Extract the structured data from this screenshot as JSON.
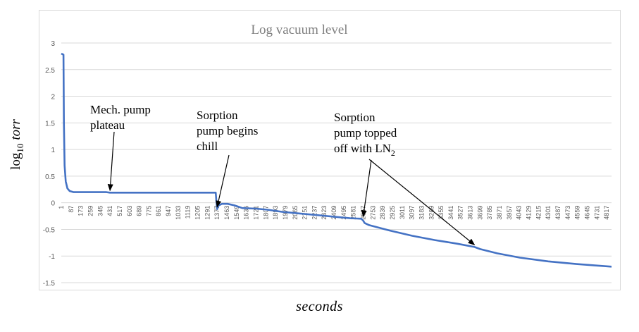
{
  "chart_data": {
    "type": "line",
    "title": "Log vacuum level",
    "xlabel": "seconds",
    "ylabel_base": "log",
    "ylabel_sub": "10",
    "ylabel_unit": "torr",
    "ylim": [
      -1.5,
      3
    ],
    "y_ticks": [
      3,
      2.5,
      2,
      1.5,
      1,
      0.5,
      0,
      -0.5,
      -1,
      -1.5
    ],
    "x_ticks": [
      "1",
      "87",
      "173",
      "259",
      "345",
      "431",
      "517",
      "603",
      "689",
      "775",
      "861",
      "947",
      "1033",
      "1119",
      "1205",
      "1291",
      "1377",
      "1463",
      "1549",
      "1635",
      "1721",
      "1807",
      "1893",
      "1979",
      "2065",
      "2151",
      "2237",
      "2323",
      "2409",
      "2495",
      "2581",
      "2667",
      "2753",
      "2839",
      "2925",
      "3011",
      "3097",
      "3183",
      "3269",
      "3355",
      "3441",
      "3527",
      "3613",
      "3699",
      "3785",
      "3871",
      "3957",
      "4043",
      "4129",
      "4215",
      "4301",
      "4387",
      "4473",
      "4559",
      "4645",
      "4731",
      "4817"
    ],
    "x_range": [
      1,
      4860
    ],
    "grid": true,
    "series": [
      {
        "color": "#4472c4",
        "points": [
          [
            1,
            2.8
          ],
          [
            20,
            2.78
          ],
          [
            24,
            1.5
          ],
          [
            30,
            0.7
          ],
          [
            40,
            0.4
          ],
          [
            55,
            0.27
          ],
          [
            75,
            0.22
          ],
          [
            110,
            0.2
          ],
          [
            250,
            0.2
          ],
          [
            400,
            0.2
          ],
          [
            430,
            0.19
          ],
          [
            800,
            0.19
          ],
          [
            1200,
            0.19
          ],
          [
            1365,
            0.19
          ],
          [
            1370,
            0.05
          ],
          [
            1377,
            -0.12
          ],
          [
            1390,
            -0.05
          ],
          [
            1420,
            -0.02
          ],
          [
            1470,
            -0.02
          ],
          [
            1530,
            -0.05
          ],
          [
            1560,
            -0.07
          ],
          [
            1600,
            -0.1
          ],
          [
            1720,
            -0.11
          ],
          [
            1820,
            -0.13
          ],
          [
            1950,
            -0.17
          ],
          [
            2100,
            -0.2
          ],
          [
            2250,
            -0.23
          ],
          [
            2400,
            -0.26
          ],
          [
            2550,
            -0.29
          ],
          [
            2650,
            -0.3
          ],
          [
            2665,
            -0.33
          ],
          [
            2680,
            -0.38
          ],
          [
            2720,
            -0.42
          ],
          [
            2900,
            -0.52
          ],
          [
            3100,
            -0.62
          ],
          [
            3300,
            -0.7
          ],
          [
            3500,
            -0.77
          ],
          [
            3650,
            -0.83
          ],
          [
            3700,
            -0.87
          ],
          [
            3850,
            -0.95
          ],
          [
            4050,
            -1.03
          ],
          [
            4300,
            -1.1
          ],
          [
            4550,
            -1.15
          ],
          [
            4860,
            -1.2
          ]
        ]
      }
    ],
    "annotations": [
      {
        "lines": [
          "Mech. pump",
          "plateau"
        ],
        "target": [
          431,
          0.19
        ]
      },
      {
        "lines": [
          "Sorption",
          "pump begins",
          "chill"
        ],
        "target": [
          1377,
          -0.12
        ]
      },
      {
        "lines": [
          "Sorption",
          "pump topped",
          "off with LN"
        ],
        "subscript": "2",
        "targets": [
          [
            2667,
            -0.3
          ],
          [
            3650,
            -0.83
          ]
        ]
      }
    ]
  }
}
